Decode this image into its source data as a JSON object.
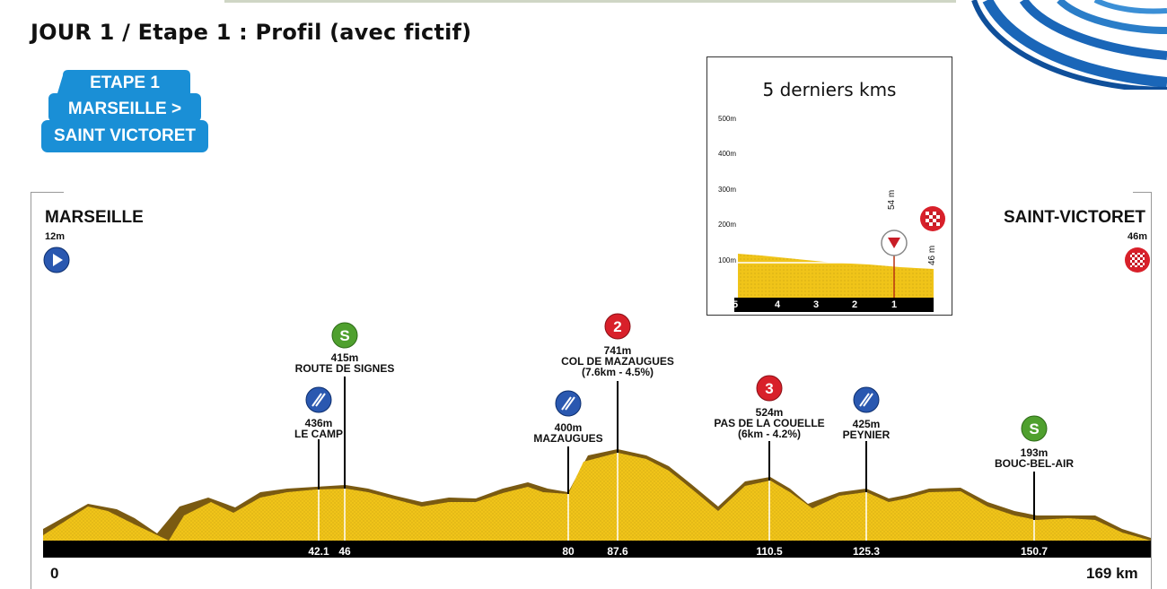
{
  "header": {
    "title": "JOUR 1 / Etape 1 : Profil (avec fictif)"
  },
  "badge": {
    "line1": "ETAPE 1",
    "line2": "MARSEILLE >",
    "line3": "SAINT VICTORET",
    "color": "#1a8fd6"
  },
  "start": {
    "name": "MARSEILLE",
    "altitude": "12m"
  },
  "finish": {
    "name": "SAINT-VICTORET",
    "altitude": "46m"
  },
  "axis": {
    "start": "0",
    "end": "169 km"
  },
  "km_markers": [
    "42.1",
    "46",
    "80",
    "87.6",
    "110.5",
    "125.3",
    "150.7"
  ],
  "points": [
    {
      "icon": "sprint-icon",
      "altitude": "415m",
      "name": "ROUTE DE SIGNES",
      "extra": ""
    },
    {
      "icon": "feed-zone-icon",
      "altitude": "436m",
      "name": "LE CAMP",
      "extra": ""
    },
    {
      "icon": "feed-zone-icon",
      "altitude": "400m",
      "name": "MAZAUGUES",
      "extra": ""
    },
    {
      "icon": "climb-cat-2-icon",
      "altitude": "741m",
      "name": "COL DE MAZAUGUES",
      "extra": "(7.6km - 4.5%)",
      "badge": "2"
    },
    {
      "icon": "climb-cat-3-icon",
      "altitude": "524m",
      "name": "PAS DE LA COUELLE",
      "extra": "(6km - 4.2%)",
      "badge": "3"
    },
    {
      "icon": "feed-zone-icon",
      "altitude": "425m",
      "name": "PEYNIER",
      "extra": ""
    },
    {
      "icon": "sprint-icon",
      "altitude": "193m",
      "name": "BOUC-BEL-AIR",
      "extra": ""
    }
  ],
  "sprint_letter": "S",
  "inset": {
    "title": "5 derniers kms",
    "y_ticks": [
      "500m",
      "400m",
      "300m",
      "200m",
      "100m"
    ],
    "km_labels": [
      "5",
      "4",
      "3",
      "2",
      "1"
    ],
    "marker_54": "54 m",
    "marker_46": "46 m"
  },
  "colors": {
    "profile": "#f0c419",
    "shadow": "#7a5a12",
    "green": "#4fa02e",
    "red": "#d8202a",
    "blue": "#2a58b0",
    "bar": "#000000"
  }
}
